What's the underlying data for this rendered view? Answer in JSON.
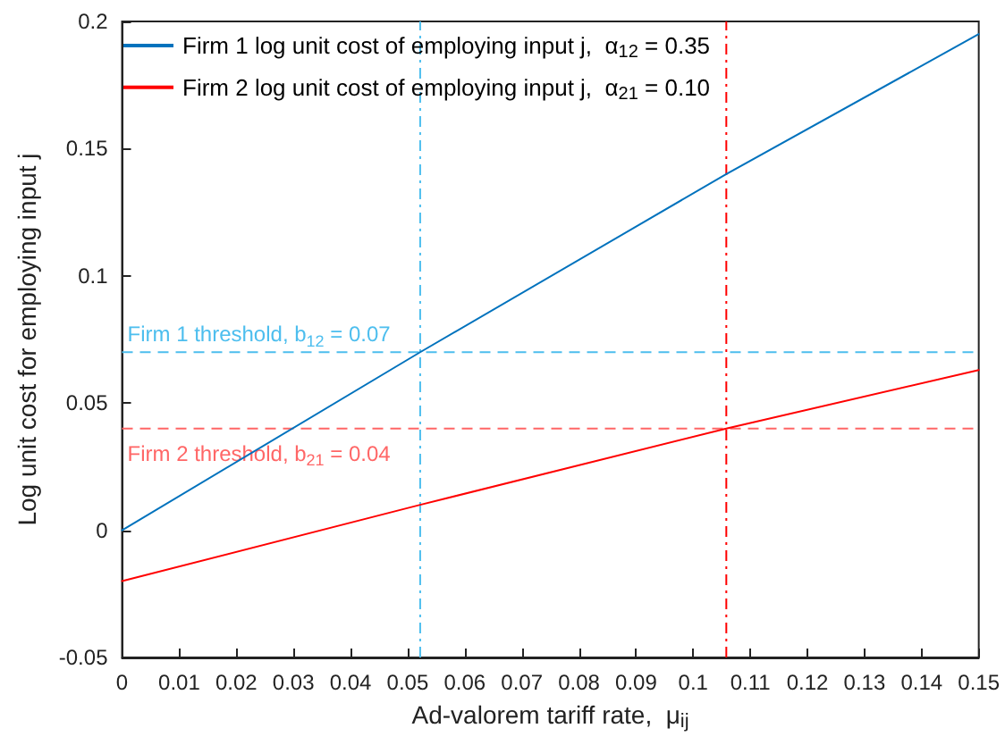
{
  "chart_data": {
    "type": "line",
    "xlabel": "Ad-valorem tariff rate,  μ$_{ij}$",
    "ylabel": "Log unit cost for employing input j",
    "x": [
      0,
      0.0522,
      0.1058,
      0.15
    ],
    "series": [
      {
        "name": "Firm 1 log unit cost of employing input j,  α$_{12}$ = 0.35",
        "color": "#0072bd",
        "values": [
          0,
          0.07,
          0.14,
          0.195
        ]
      },
      {
        "name": "Firm 2 log unit cost of employing input j,  α$_{21}$ = 0.10",
        "color": "#ff0000",
        "values": [
          -0.02,
          0.01,
          0.04,
          0.063
        ]
      }
    ],
    "xlim": [
      0,
      0.15
    ],
    "xticks": [
      0,
      0.01,
      0.02,
      0.03,
      0.04,
      0.05,
      0.06,
      0.07,
      0.08,
      0.09,
      0.1,
      0.11,
      0.12,
      0.13,
      0.14,
      0.15
    ],
    "ylim": [
      -0.05,
      0.2
    ],
    "yticks": [
      -0.05,
      0,
      0.05,
      0.1,
      0.15,
      0.2
    ],
    "ref_lines": [
      {
        "axis": "y",
        "value": 0.07,
        "label": "Firm 1 threshold, b$_{12}$ = 0.07",
        "color": "#4dbeee",
        "line_style": "dashed"
      },
      {
        "axis": "y",
        "value": 0.04,
        "label": "Firm 2 threshold, b$_{21}$ = 0.04",
        "color": "#ff6666",
        "line_style": "dashed"
      },
      {
        "axis": "x",
        "value": 0.0522,
        "color": "#4dbeee",
        "line_style": "dashdot"
      },
      {
        "axis": "x",
        "value": 0.1058,
        "color": "#ff0000",
        "line_style": "dashdot"
      }
    ],
    "legend": "top left",
    "grid": false,
    "marker": "none",
    "line_style": "solid"
  }
}
